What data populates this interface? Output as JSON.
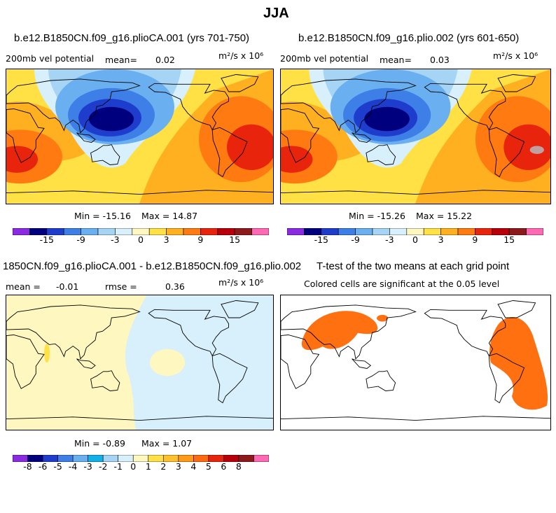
{
  "page_title": "JJA",
  "chart_data": [
    {
      "type": "heatmap",
      "title": "b.e12.B1850CN.f09_g16.plioCA.001 (yrs 701-750)",
      "variable": "200mb vel potential",
      "mean_label": "mean=",
      "mean_value": "0.02",
      "units": "m²/s x 10⁶",
      "min_label": "Min = -15.16",
      "max_label": "Max =  14.87",
      "min": -15.16,
      "max": 14.87,
      "colorbar_ticks": [
        "-15",
        "-9",
        "-3",
        "0",
        "3",
        "9",
        "15"
      ]
    },
    {
      "type": "heatmap",
      "title": "b.e12.B1850CN.f09_g16.plio.002 (yrs 601-650)",
      "variable": "200mb vel potential",
      "mean_label": "mean=",
      "mean_value": "0.03",
      "units": "m²/s x 10⁶",
      "min_label": "Min = -15.26",
      "max_label": "Max =  15.22",
      "min": -15.26,
      "max": 15.22,
      "colorbar_ticks": [
        "-15",
        "-9",
        "-3",
        "0",
        "3",
        "9",
        "15"
      ]
    },
    {
      "type": "heatmap",
      "title": "1850CN.f09_g16.plioCA.001 - b.e12.B1850CN.f09_g16.plio.002",
      "mean_label": "mean =",
      "mean_value": "-0.01",
      "rmse_label": "rmse =",
      "rmse_value": "0.36",
      "units": "m²/s x 10⁶",
      "min_label": "Min = -0.89",
      "max_label": "Max =   1.07",
      "min": -0.89,
      "max": 1.07,
      "colorbar_ticks": [
        "-8",
        "-6",
        "-5",
        "-4",
        "-3",
        "-2",
        "-1",
        "0",
        "1",
        "2",
        "3",
        "4",
        "5",
        "6",
        "8"
      ]
    },
    {
      "type": "heatmap",
      "title": "T-test of the two means at each grid point",
      "subtitle": "Colored cells are significant at the 0.05 level"
    }
  ],
  "colors": {
    "cb_full": [
      "#8a2be2",
      "#00007f",
      "#1f3dcc",
      "#3d7fe6",
      "#6ab0f0",
      "#a6d4f5",
      "#d8f0fb",
      "#fff7c0",
      "#ffe045",
      "#ffb020",
      "#ff7a10",
      "#e8250c",
      "#b8000a",
      "#8c1a1a",
      "#ff69b4"
    ],
    "cb_diff": [
      "#8a2be2",
      "#00007f",
      "#1f3dcc",
      "#3d7fe6",
      "#6ab0f0",
      "#12b0e8",
      "#a6d4f5",
      "#d8f0fb",
      "#fff7c0",
      "#ffe045",
      "#ffc02e",
      "#ff9a18",
      "#ff6a10",
      "#e8250c",
      "#b8000a",
      "#8c1a1a",
      "#ff69b4"
    ],
    "sig": "#ff7010"
  }
}
